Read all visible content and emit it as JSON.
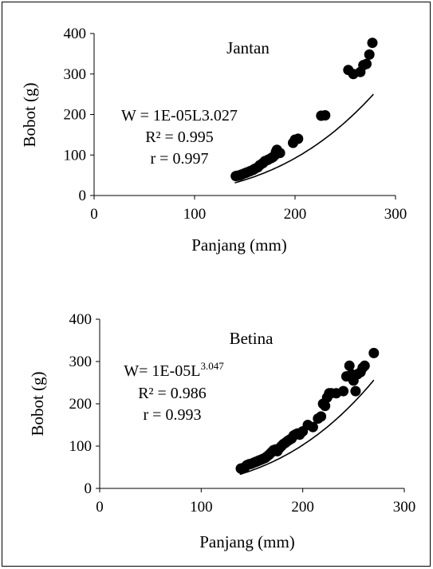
{
  "chart_data": [
    {
      "type": "scatter",
      "title": "Jantan",
      "xlabel": "Panjang (mm)",
      "ylabel": "Bobot (g)",
      "xlim": [
        0,
        300
      ],
      "ylim": [
        0,
        400
      ],
      "xticks": [
        "0",
        "100",
        "200",
        "300"
      ],
      "yticks": [
        "0",
        "100",
        "200",
        "300",
        "400"
      ],
      "grid": false,
      "annotations": {
        "equation": "W = 1E-05L3.027",
        "r2": "R² = 0.995",
        "r": "r = 0.997"
      },
      "trendline": {
        "a": 1e-05,
        "b": 3.027,
        "x_range": [
          140,
          278
        ]
      },
      "points": [
        [
          141,
          48
        ],
        [
          143,
          49
        ],
        [
          145,
          50
        ],
        [
          147,
          52
        ],
        [
          150,
          55
        ],
        [
          152,
          57
        ],
        [
          155,
          60
        ],
        [
          158,
          63
        ],
        [
          160,
          66
        ],
        [
          163,
          70
        ],
        [
          165,
          75
        ],
        [
          168,
          80
        ],
        [
          170,
          85
        ],
        [
          173,
          88
        ],
        [
          176,
          92
        ],
        [
          178,
          95
        ],
        [
          180,
          100
        ],
        [
          181,
          108
        ],
        [
          182,
          113
        ],
        [
          185,
          105
        ],
        [
          198,
          130
        ],
        [
          200,
          138
        ],
        [
          203,
          140
        ],
        [
          226,
          197
        ],
        [
          230,
          198
        ],
        [
          253,
          310
        ],
        [
          258,
          300
        ],
        [
          265,
          305
        ],
        [
          268,
          322
        ],
        [
          271,
          325
        ],
        [
          274,
          348
        ],
        [
          277,
          377
        ]
      ]
    },
    {
      "type": "scatter",
      "title": "Betina",
      "xlabel": "Panjang (mm)",
      "ylabel": "Bobot (g)",
      "xlim": [
        0,
        300
      ],
      "ylim": [
        0,
        400
      ],
      "xticks": [
        "0",
        "100",
        "200",
        "300"
      ],
      "yticks": [
        "0",
        "100",
        "200",
        "300",
        "400"
      ],
      "grid": false,
      "annotations": {
        "equation_prefix": "W= 1E-05L",
        "equation_exp": "3.047",
        "r2": "R² = 0.986",
        "r": "r = 0.993"
      },
      "trendline": {
        "a": 1e-05,
        "b": 3.047,
        "x_range": [
          138,
          270
        ]
      },
      "points": [
        [
          139,
          47
        ],
        [
          141,
          48
        ],
        [
          143,
          50
        ],
        [
          145,
          55
        ],
        [
          147,
          57
        ],
        [
          149,
          58
        ],
        [
          151,
          60
        ],
        [
          153,
          62
        ],
        [
          155,
          64
        ],
        [
          157,
          66
        ],
        [
          159,
          68
        ],
        [
          161,
          70
        ],
        [
          163,
          72
        ],
        [
          165,
          76
        ],
        [
          167,
          80
        ],
        [
          169,
          85
        ],
        [
          171,
          90
        ],
        [
          173,
          92
        ],
        [
          175,
          88
        ],
        [
          177,
          95
        ],
        [
          179,
          100
        ],
        [
          181,
          105
        ],
        [
          183,
          108
        ],
        [
          185,
          112
        ],
        [
          187,
          115
        ],
        [
          189,
          118
        ],
        [
          191,
          125
        ],
        [
          193,
          128
        ],
        [
          195,
          130
        ],
        [
          197,
          127
        ],
        [
          200,
          135
        ],
        [
          205,
          150
        ],
        [
          210,
          145
        ],
        [
          215,
          165
        ],
        [
          218,
          170
        ],
        [
          220,
          200
        ],
        [
          222,
          195
        ],
        [
          224,
          215
        ],
        [
          226,
          225
        ],
        [
          228,
          225
        ],
        [
          233,
          225
        ],
        [
          240,
          230
        ],
        [
          243,
          265
        ],
        [
          246,
          290
        ],
        [
          248,
          270
        ],
        [
          250,
          255
        ],
        [
          252,
          230
        ],
        [
          254,
          270
        ],
        [
          257,
          275
        ],
        [
          259,
          285
        ],
        [
          261,
          290
        ],
        [
          270,
          320
        ]
      ]
    }
  ]
}
